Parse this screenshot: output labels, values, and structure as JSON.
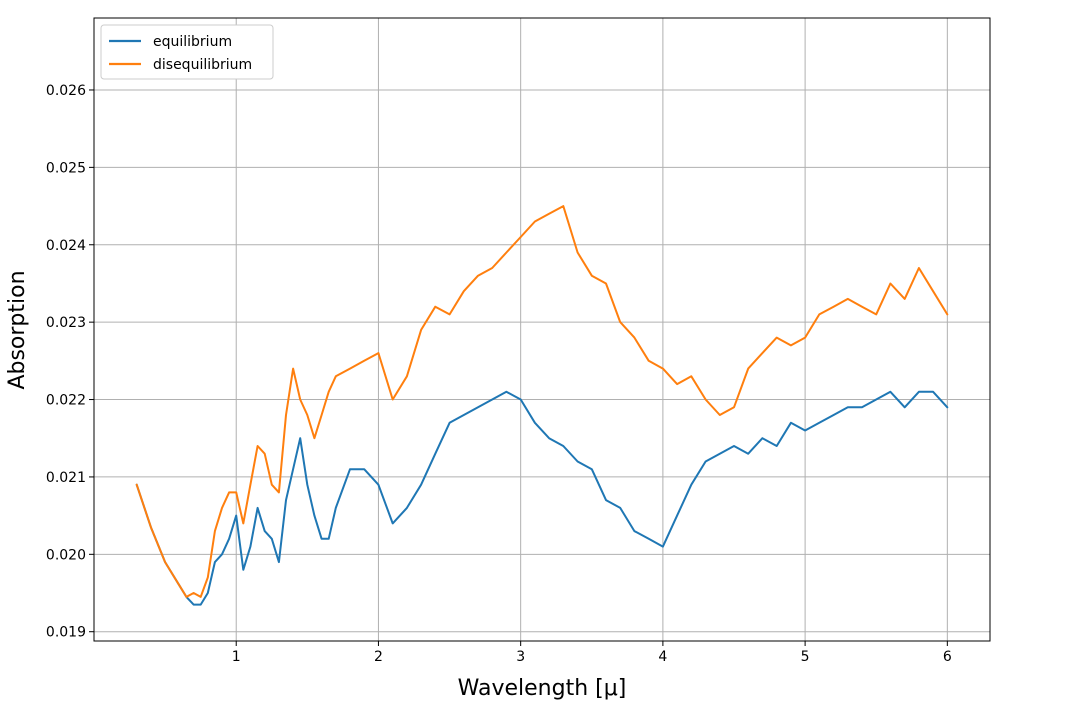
{
  "chart_data": {
    "type": "line",
    "title": "",
    "xlabel": "Wavelength [μ]",
    "ylabel": "Absorption",
    "xlim": [
      0.0,
      6.3
    ],
    "ylim": [
      0.01888,
      0.02693
    ],
    "grid": true,
    "legend_position": "upper-left",
    "x_ticks": [
      1,
      2,
      3,
      4,
      5,
      6
    ],
    "x_tick_labels": [
      "1",
      "2",
      "3",
      "4",
      "5",
      "6"
    ],
    "y_ticks": [
      0.019,
      0.02,
      0.021,
      0.022,
      0.023,
      0.024,
      0.025,
      0.026
    ],
    "y_tick_labels": [
      "0.019",
      "0.020",
      "0.021",
      "0.022",
      "0.023",
      "0.024",
      "0.025",
      "0.026"
    ],
    "series": [
      {
        "name": "equilibrium",
        "color": "#1f77b4",
        "x": [
          0.3,
          0.4,
          0.5,
          0.6,
          0.65,
          0.7,
          0.75,
          0.8,
          0.85,
          0.9,
          0.95,
          1.0,
          1.05,
          1.1,
          1.15,
          1.2,
          1.25,
          1.3,
          1.35,
          1.4,
          1.45,
          1.5,
          1.55,
          1.6,
          1.65,
          1.7,
          1.8,
          1.9,
          2.0,
          2.1,
          2.2,
          2.3,
          2.4,
          2.5,
          2.6,
          2.7,
          2.8,
          2.9,
          3.0,
          3.1,
          3.2,
          3.3,
          3.4,
          3.5,
          3.6,
          3.7,
          3.8,
          3.9,
          4.0,
          4.1,
          4.2,
          4.3,
          4.4,
          4.5,
          4.6,
          4.7,
          4.8,
          4.9,
          5.0,
          5.1,
          5.2,
          5.3,
          5.4,
          5.5,
          5.6,
          5.7,
          5.8,
          5.9,
          6.0
        ],
        "y": [
          0.0209,
          0.02035,
          0.0199,
          0.0196,
          0.01945,
          0.01935,
          0.01935,
          0.0195,
          0.0199,
          0.02,
          0.0202,
          0.0205,
          0.0198,
          0.0201,
          0.0206,
          0.0203,
          0.0202,
          0.0199,
          0.0207,
          0.0211,
          0.0215,
          0.0209,
          0.0205,
          0.0202,
          0.0202,
          0.0206,
          0.0211,
          0.0211,
          0.0209,
          0.0204,
          0.0206,
          0.0209,
          0.0213,
          0.0217,
          0.0218,
          0.0219,
          0.022,
          0.0221,
          0.022,
          0.0217,
          0.0215,
          0.0214,
          0.0212,
          0.0211,
          0.0207,
          0.0206,
          0.0203,
          0.0202,
          0.0201,
          0.0205,
          0.0209,
          0.0212,
          0.0213,
          0.0214,
          0.0213,
          0.0215,
          0.0214,
          0.0217,
          0.0216,
          0.0217,
          0.0218,
          0.0219,
          0.0219,
          0.022,
          0.0221,
          0.0219,
          0.0221,
          0.0221,
          0.0219
        ]
      },
      {
        "name": "disequilibrium",
        "color": "#ff7f0e",
        "x": [
          0.3,
          0.4,
          0.5,
          0.6,
          0.65,
          0.7,
          0.75,
          0.8,
          0.85,
          0.9,
          0.95,
          1.0,
          1.05,
          1.1,
          1.15,
          1.2,
          1.25,
          1.3,
          1.35,
          1.4,
          1.45,
          1.5,
          1.55,
          1.6,
          1.65,
          1.7,
          1.8,
          1.9,
          2.0,
          2.1,
          2.2,
          2.3,
          2.4,
          2.5,
          2.6,
          2.7,
          2.8,
          2.9,
          3.0,
          3.1,
          3.2,
          3.3,
          3.4,
          3.5,
          3.6,
          3.7,
          3.8,
          3.9,
          4.0,
          4.1,
          4.2,
          4.3,
          4.4,
          4.5,
          4.6,
          4.7,
          4.8,
          4.9,
          5.0,
          5.1,
          5.2,
          5.3,
          5.4,
          5.5,
          5.6,
          5.7,
          5.8,
          5.9,
          6.0
        ],
        "y": [
          0.0209,
          0.02035,
          0.0199,
          0.0196,
          0.01945,
          0.0195,
          0.01945,
          0.0197,
          0.0203,
          0.0206,
          0.0208,
          0.0208,
          0.0204,
          0.0209,
          0.0214,
          0.0213,
          0.0209,
          0.0208,
          0.0218,
          0.0224,
          0.022,
          0.0218,
          0.0215,
          0.0218,
          0.0221,
          0.0223,
          0.0224,
          0.0225,
          0.0226,
          0.022,
          0.0223,
          0.0229,
          0.0232,
          0.0231,
          0.0234,
          0.0236,
          0.0237,
          0.0239,
          0.0241,
          0.0243,
          0.0244,
          0.0245,
          0.0239,
          0.0236,
          0.0235,
          0.023,
          0.0228,
          0.0225,
          0.0224,
          0.0222,
          0.0223,
          0.022,
          0.0218,
          0.0219,
          0.0224,
          0.0226,
          0.0228,
          0.0227,
          0.0228,
          0.0231,
          0.0232,
          0.0233,
          0.0232,
          0.0231,
          0.0235,
          0.0233,
          0.0237,
          0.0234,
          0.0231
        ]
      }
    ]
  }
}
